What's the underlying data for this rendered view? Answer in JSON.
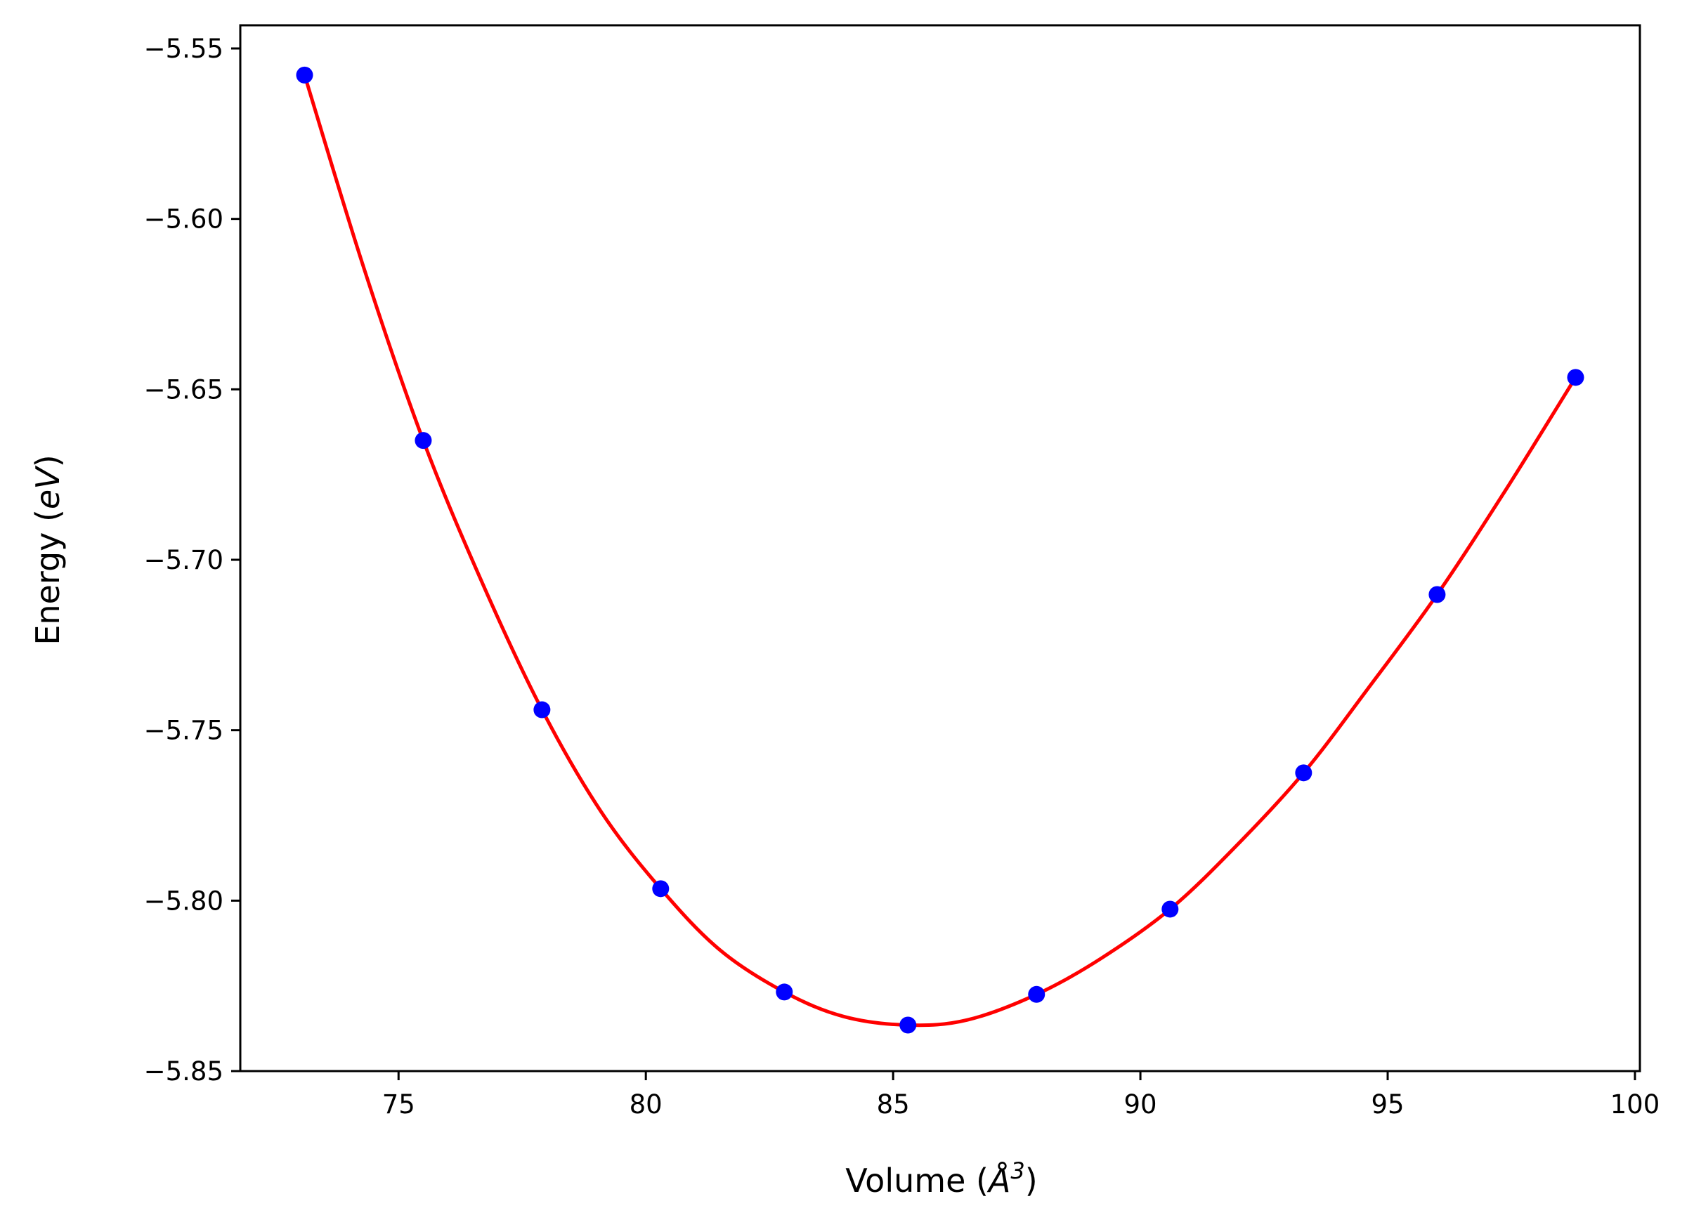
{
  "chart_data": {
    "type": "line",
    "xlabel_pre": "Volume (",
    "xlabel_sym": "Å",
    "xlabel_sup": "3",
    "xlabel_post": ")",
    "ylabel_pre": "Energy (",
    "ylabel_unit": "eV",
    "ylabel_post": ")",
    "xlim": [
      71.8,
      100.1
    ],
    "ylim": [
      -5.85,
      -5.5432
    ],
    "xticks": [
      75,
      80,
      85,
      90,
      95,
      100
    ],
    "xtick_labels": [
      "75",
      "80",
      "85",
      "90",
      "95",
      "100"
    ],
    "yticks": [
      -5.85,
      -5.8,
      -5.75,
      -5.7,
      -5.65,
      -5.6,
      -5.55
    ],
    "ytick_labels": [
      "−5.85",
      "−5.80",
      "−5.75",
      "−5.70",
      "−5.65",
      "−5.60",
      "−5.55"
    ],
    "grid": false,
    "series": [
      {
        "kind": "fit-curve",
        "color": "#ff0000",
        "x": [
          73.1,
          74.3,
          75.5,
          76.7,
          77.9,
          79.1,
          80.3,
          81.5,
          82.8,
          84.0,
          85.3,
          86.5,
          87.9,
          89.2,
          90.6,
          91.9,
          93.3,
          94.6,
          96.0,
          97.4,
          98.8
        ],
        "y": [
          -5.5578,
          -5.6145,
          -5.665,
          -5.707,
          -5.744,
          -5.774,
          -5.7965,
          -5.8145,
          -5.8268,
          -5.834,
          -5.8365,
          -5.835,
          -5.8275,
          -5.817,
          -5.8025,
          -5.7845,
          -5.7625,
          -5.7378,
          -5.7102,
          -5.6792,
          -5.6465
        ]
      },
      {
        "kind": "data-points",
        "color": "#0000ff",
        "x": [
          73.1,
          75.5,
          77.9,
          80.3,
          82.8,
          85.3,
          87.9,
          90.6,
          93.3,
          96.0,
          98.8
        ],
        "y": [
          -5.5578,
          -5.665,
          -5.744,
          -5.7965,
          -5.8268,
          -5.8365,
          -5.8275,
          -5.8025,
          -5.7625,
          -5.7102,
          -5.6465
        ]
      }
    ]
  }
}
